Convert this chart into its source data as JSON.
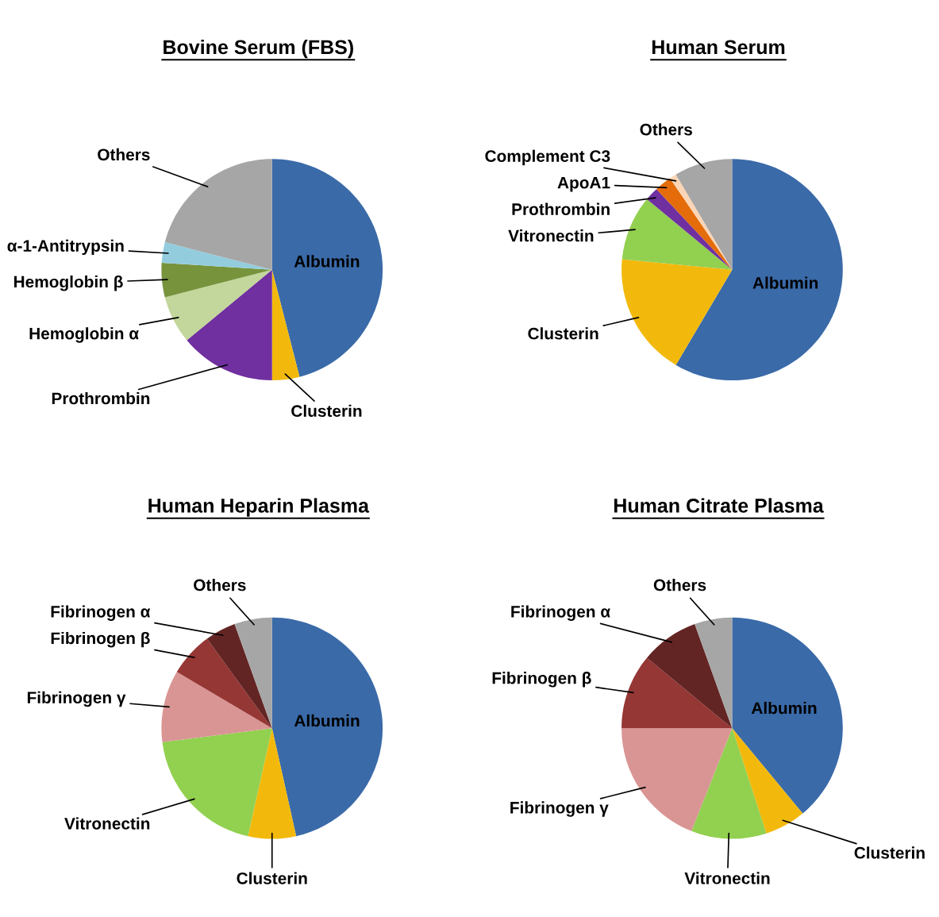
{
  "chart_data": [
    {
      "type": "pie",
      "title": "Bovine Serum (FBS)",
      "categories": [
        "Albumin",
        "Clusterin",
        "Prothrombin",
        "Hemoglobin α",
        "Hemoglobin β",
        "α-1-Antitrypsin",
        "Others"
      ],
      "values": [
        46,
        4,
        14,
        7,
        5,
        3,
        21
      ],
      "colors": [
        "#3a6aa8",
        "#f2b90c",
        "#7030a0",
        "#c3d69b",
        "#77933c",
        "#93cddd",
        "#a6a6a6"
      ]
    },
    {
      "type": "pie",
      "title": "Human Serum",
      "categories": [
        "Albumin",
        "Clusterin",
        "Vitronectin",
        "Prothrombin",
        "ApoA1",
        "Complement C3",
        "Others"
      ],
      "values": [
        58.5,
        18,
        9.5,
        2,
        2.5,
        1,
        8.5
      ],
      "colors": [
        "#3a6aa8",
        "#f2b90c",
        "#92d050",
        "#7030a0",
        "#e46c0a",
        "#fbd5b5",
        "#a6a6a6"
      ]
    },
    {
      "type": "pie",
      "title": "Human Heparin Plasma",
      "categories": [
        "Albumin",
        "Clusterin",
        "Vitronectin",
        "Fibrinogen γ",
        "Fibrinogen β",
        "Fibrinogen α",
        "Others"
      ],
      "values": [
        46.5,
        7,
        19.5,
        10.5,
        6.5,
        4.5,
        5.5
      ],
      "colors": [
        "#3a6aa8",
        "#f2b90c",
        "#92d050",
        "#d99594",
        "#953735",
        "#632523",
        "#a6a6a6"
      ]
    },
    {
      "type": "pie",
      "title": "Human Citrate Plasma",
      "categories": [
        "Albumin",
        "Clusterin",
        "Vitronectin",
        "Fibrinogen γ",
        "Fibrinogen β",
        "Fibrinogen α",
        "Others"
      ],
      "values": [
        39,
        6,
        11,
        19,
        11,
        8.5,
        5.5
      ],
      "colors": [
        "#3a6aa8",
        "#f2b90c",
        "#92d050",
        "#d99594",
        "#953735",
        "#632523",
        "#a6a6a6"
      ]
    }
  ]
}
